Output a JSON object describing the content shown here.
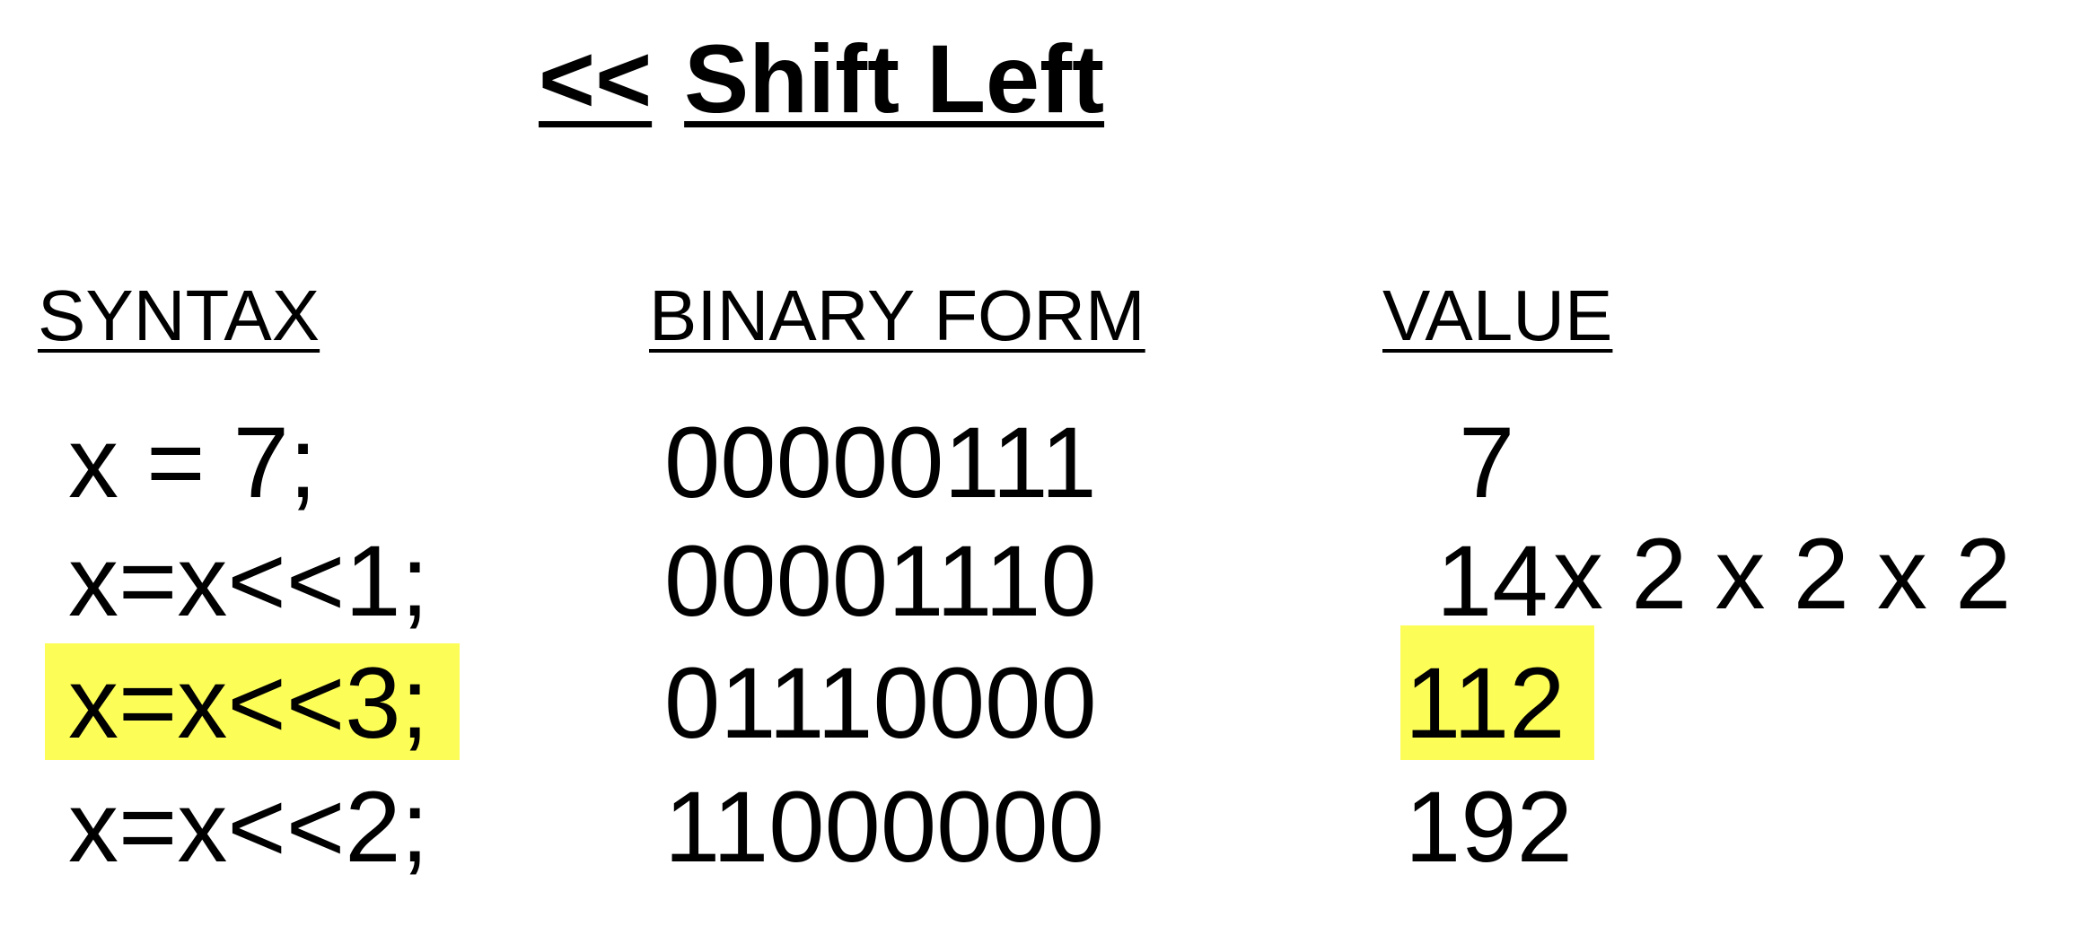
{
  "title": {
    "operator": "<<",
    "text": "Shift Left"
  },
  "table": {
    "headers": [
      "SYNTAX",
      "BINARY FORM",
      "VALUE"
    ],
    "rows": [
      {
        "syntax": "x = 7;",
        "binary": "00000111",
        "value": "7",
        "highlighted": false
      },
      {
        "syntax": "x=x<<1;",
        "binary": "00001110",
        "value": "14",
        "highlighted": false
      },
      {
        "syntax": "x=x<<3;",
        "binary": "01110000",
        "value": "112",
        "highlighted": true
      },
      {
        "syntax": "x=x<<2;",
        "binary": "11000000",
        "value": "192",
        "highlighted": false
      }
    ]
  },
  "annotation": "x 2 x 2 x 2",
  "highlight_color": "#fdfd58"
}
